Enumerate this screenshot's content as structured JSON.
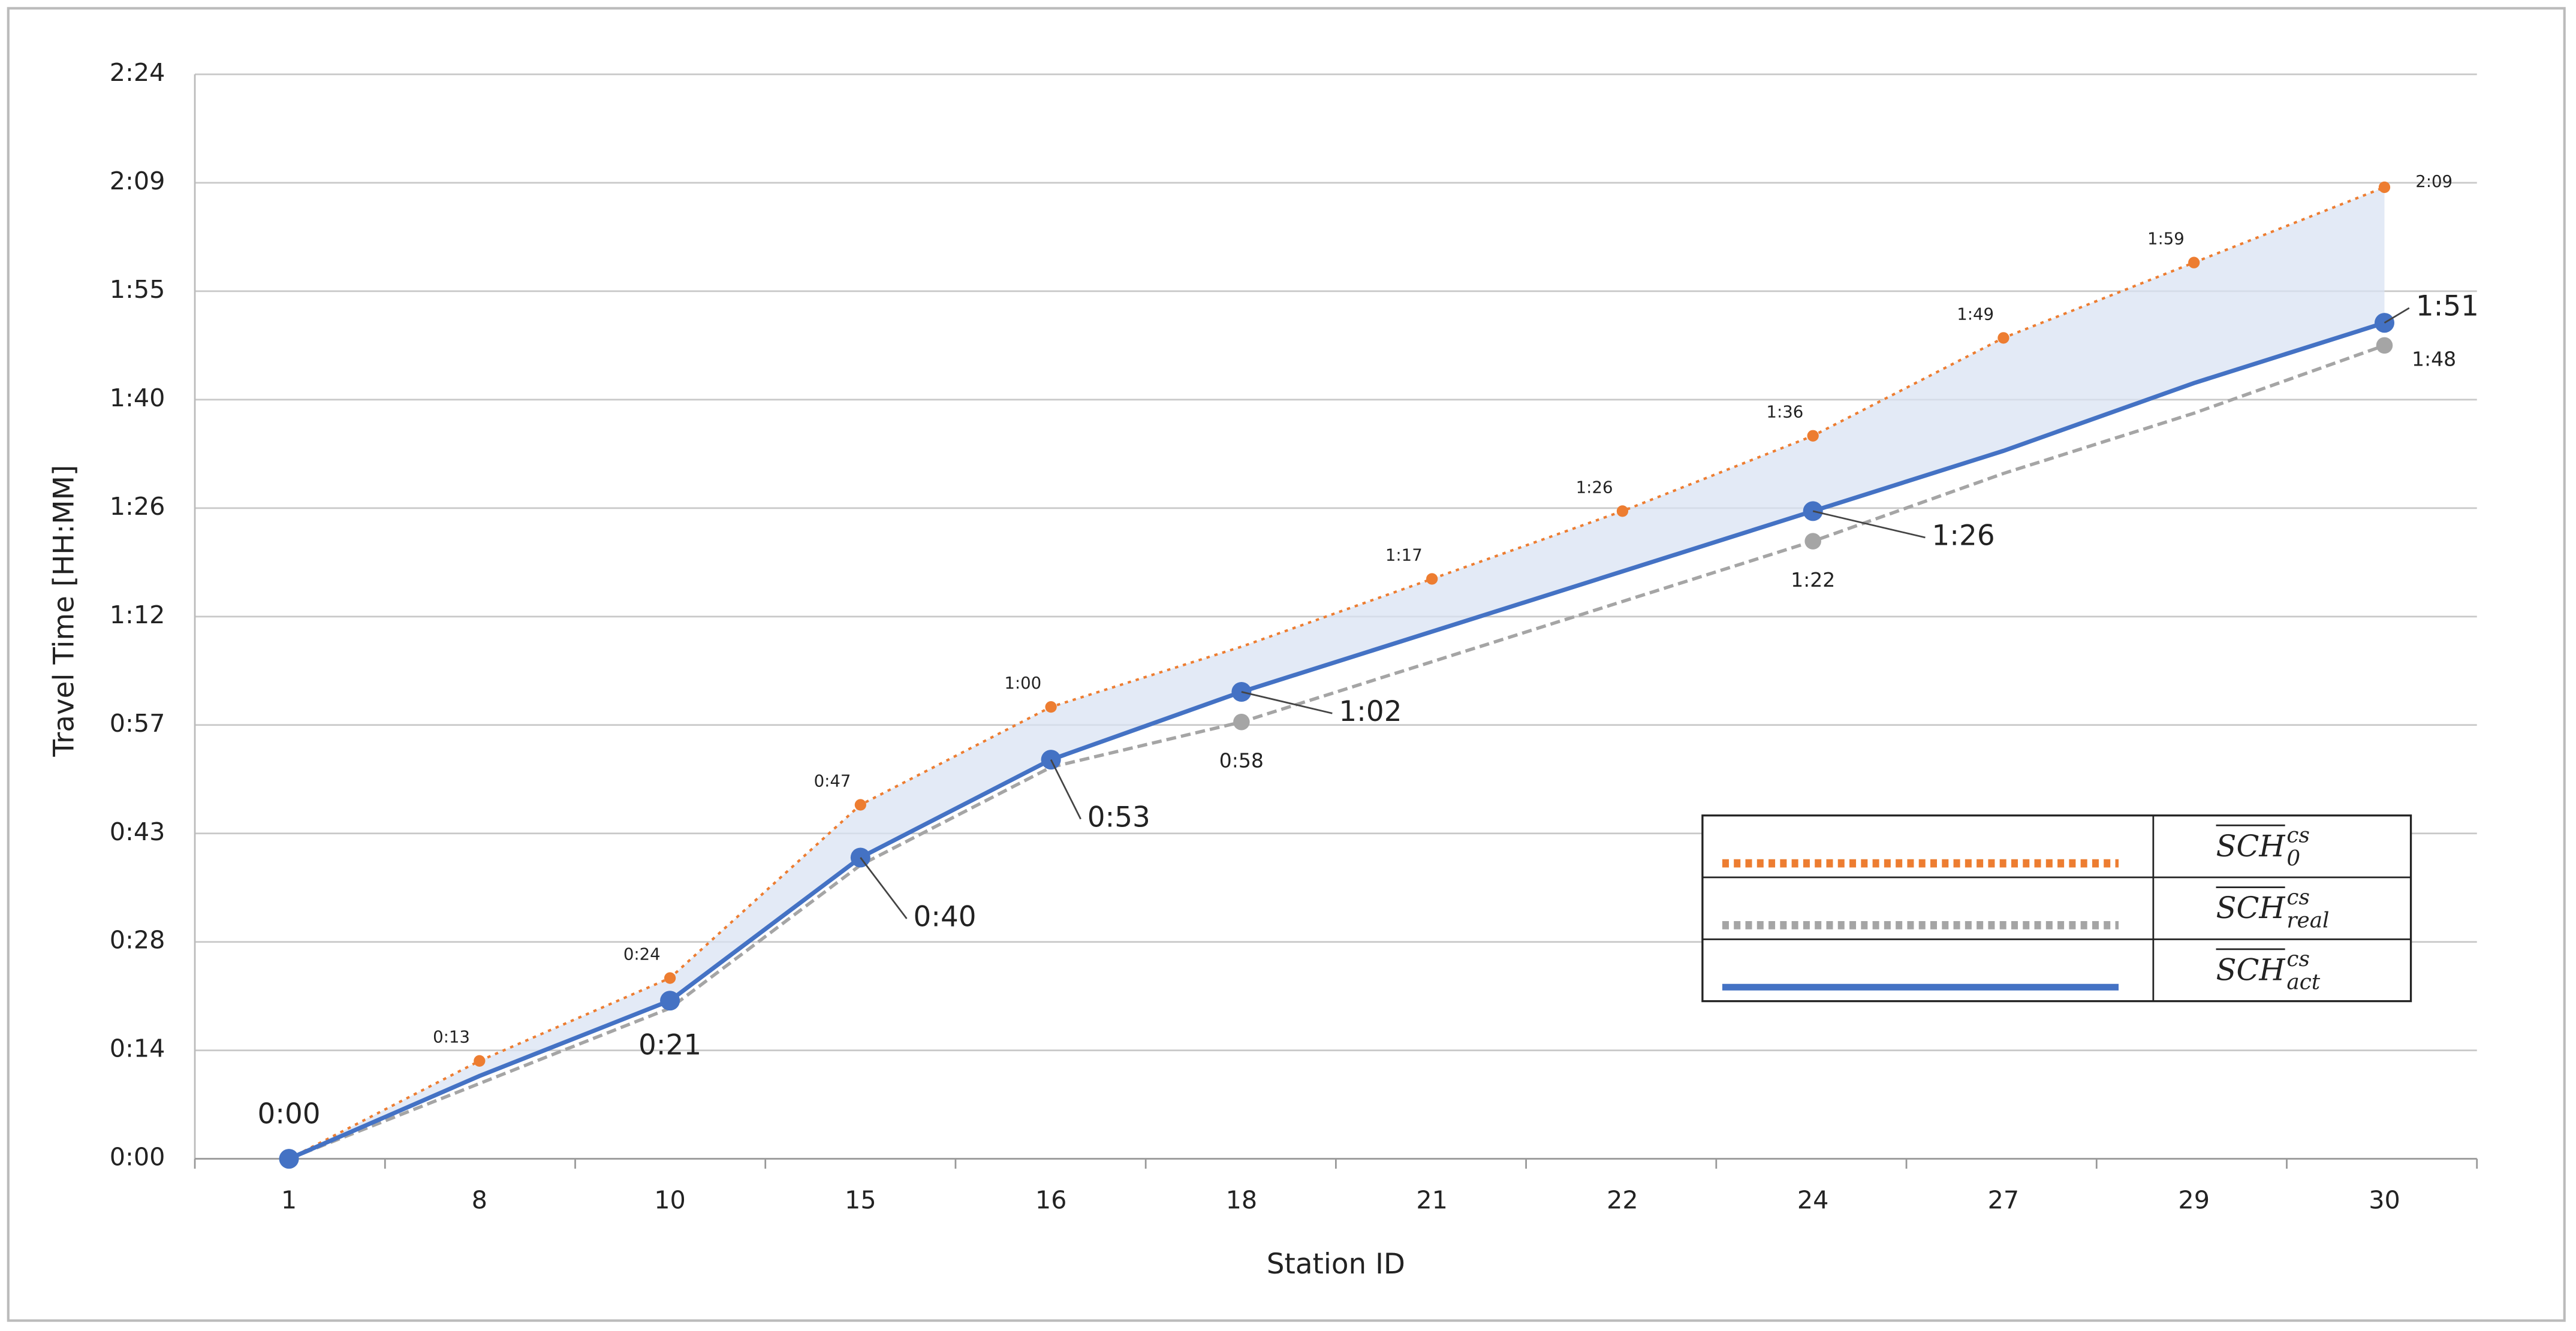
{
  "chart_data": {
    "type": "line",
    "x_label": "Station ID",
    "y_label": "Travel Time [HH:MM]",
    "categories": [
      "1",
      "8",
      "10",
      "15",
      "16",
      "18",
      "21",
      "22",
      "24",
      "27",
      "29",
      "30"
    ],
    "ylim": [
      0,
      144
    ],
    "yticks": [
      {
        "value": 0,
        "label": "0:00"
      },
      {
        "value": 14.4,
        "label": "0:14"
      },
      {
        "value": 28.8,
        "label": "0:28"
      },
      {
        "value": 43.2,
        "label": "0:43"
      },
      {
        "value": 57.6,
        "label": "0:57"
      },
      {
        "value": 72,
        "label": "1:12"
      },
      {
        "value": 86.4,
        "label": "1:26"
      },
      {
        "value": 100.8,
        "label": "1:40"
      },
      {
        "value": 115.2,
        "label": "1:55"
      },
      {
        "value": 129.6,
        "label": "2:09"
      },
      {
        "value": 144,
        "label": "2:24"
      }
    ],
    "grid": true,
    "series": [
      {
        "name": "SCH",
        "subscript": "0",
        "superscript": "cs",
        "color": "#ED7D31",
        "style": "dotted",
        "values": [
          0,
          13,
          24,
          47,
          60,
          68,
          77,
          86,
          96,
          109,
          119,
          129
        ],
        "value_labels": [
          null,
          "0:13",
          "0:24",
          "0:47",
          "1:00",
          null,
          "1:17",
          "1:26",
          "1:36",
          "1:49",
          "1:59",
          "2:09"
        ]
      },
      {
        "name": "SCH",
        "subscript": "real",
        "superscript": "cs",
        "color": "#A5A5A5",
        "style": "dashed",
        "values": [
          0,
          10,
          20,
          39,
          52,
          58,
          66,
          74,
          82,
          91,
          99,
          108
        ],
        "value_labels": [
          null,
          null,
          null,
          null,
          null,
          "0:58",
          null,
          null,
          "1:22",
          null,
          null,
          "1:48"
        ]
      },
      {
        "name": "SCH",
        "subscript": "act",
        "superscript": "cs",
        "color": "#4472C4",
        "style": "solid",
        "values": [
          0,
          11,
          21,
          40,
          53,
          62,
          70,
          78,
          86,
          94,
          103,
          111
        ],
        "value_labels": [
          "0:00",
          null,
          "0:21",
          "0:40",
          "0:53",
          "1:02",
          null,
          null,
          "1:26",
          null,
          null,
          "1:51"
        ]
      }
    ]
  }
}
